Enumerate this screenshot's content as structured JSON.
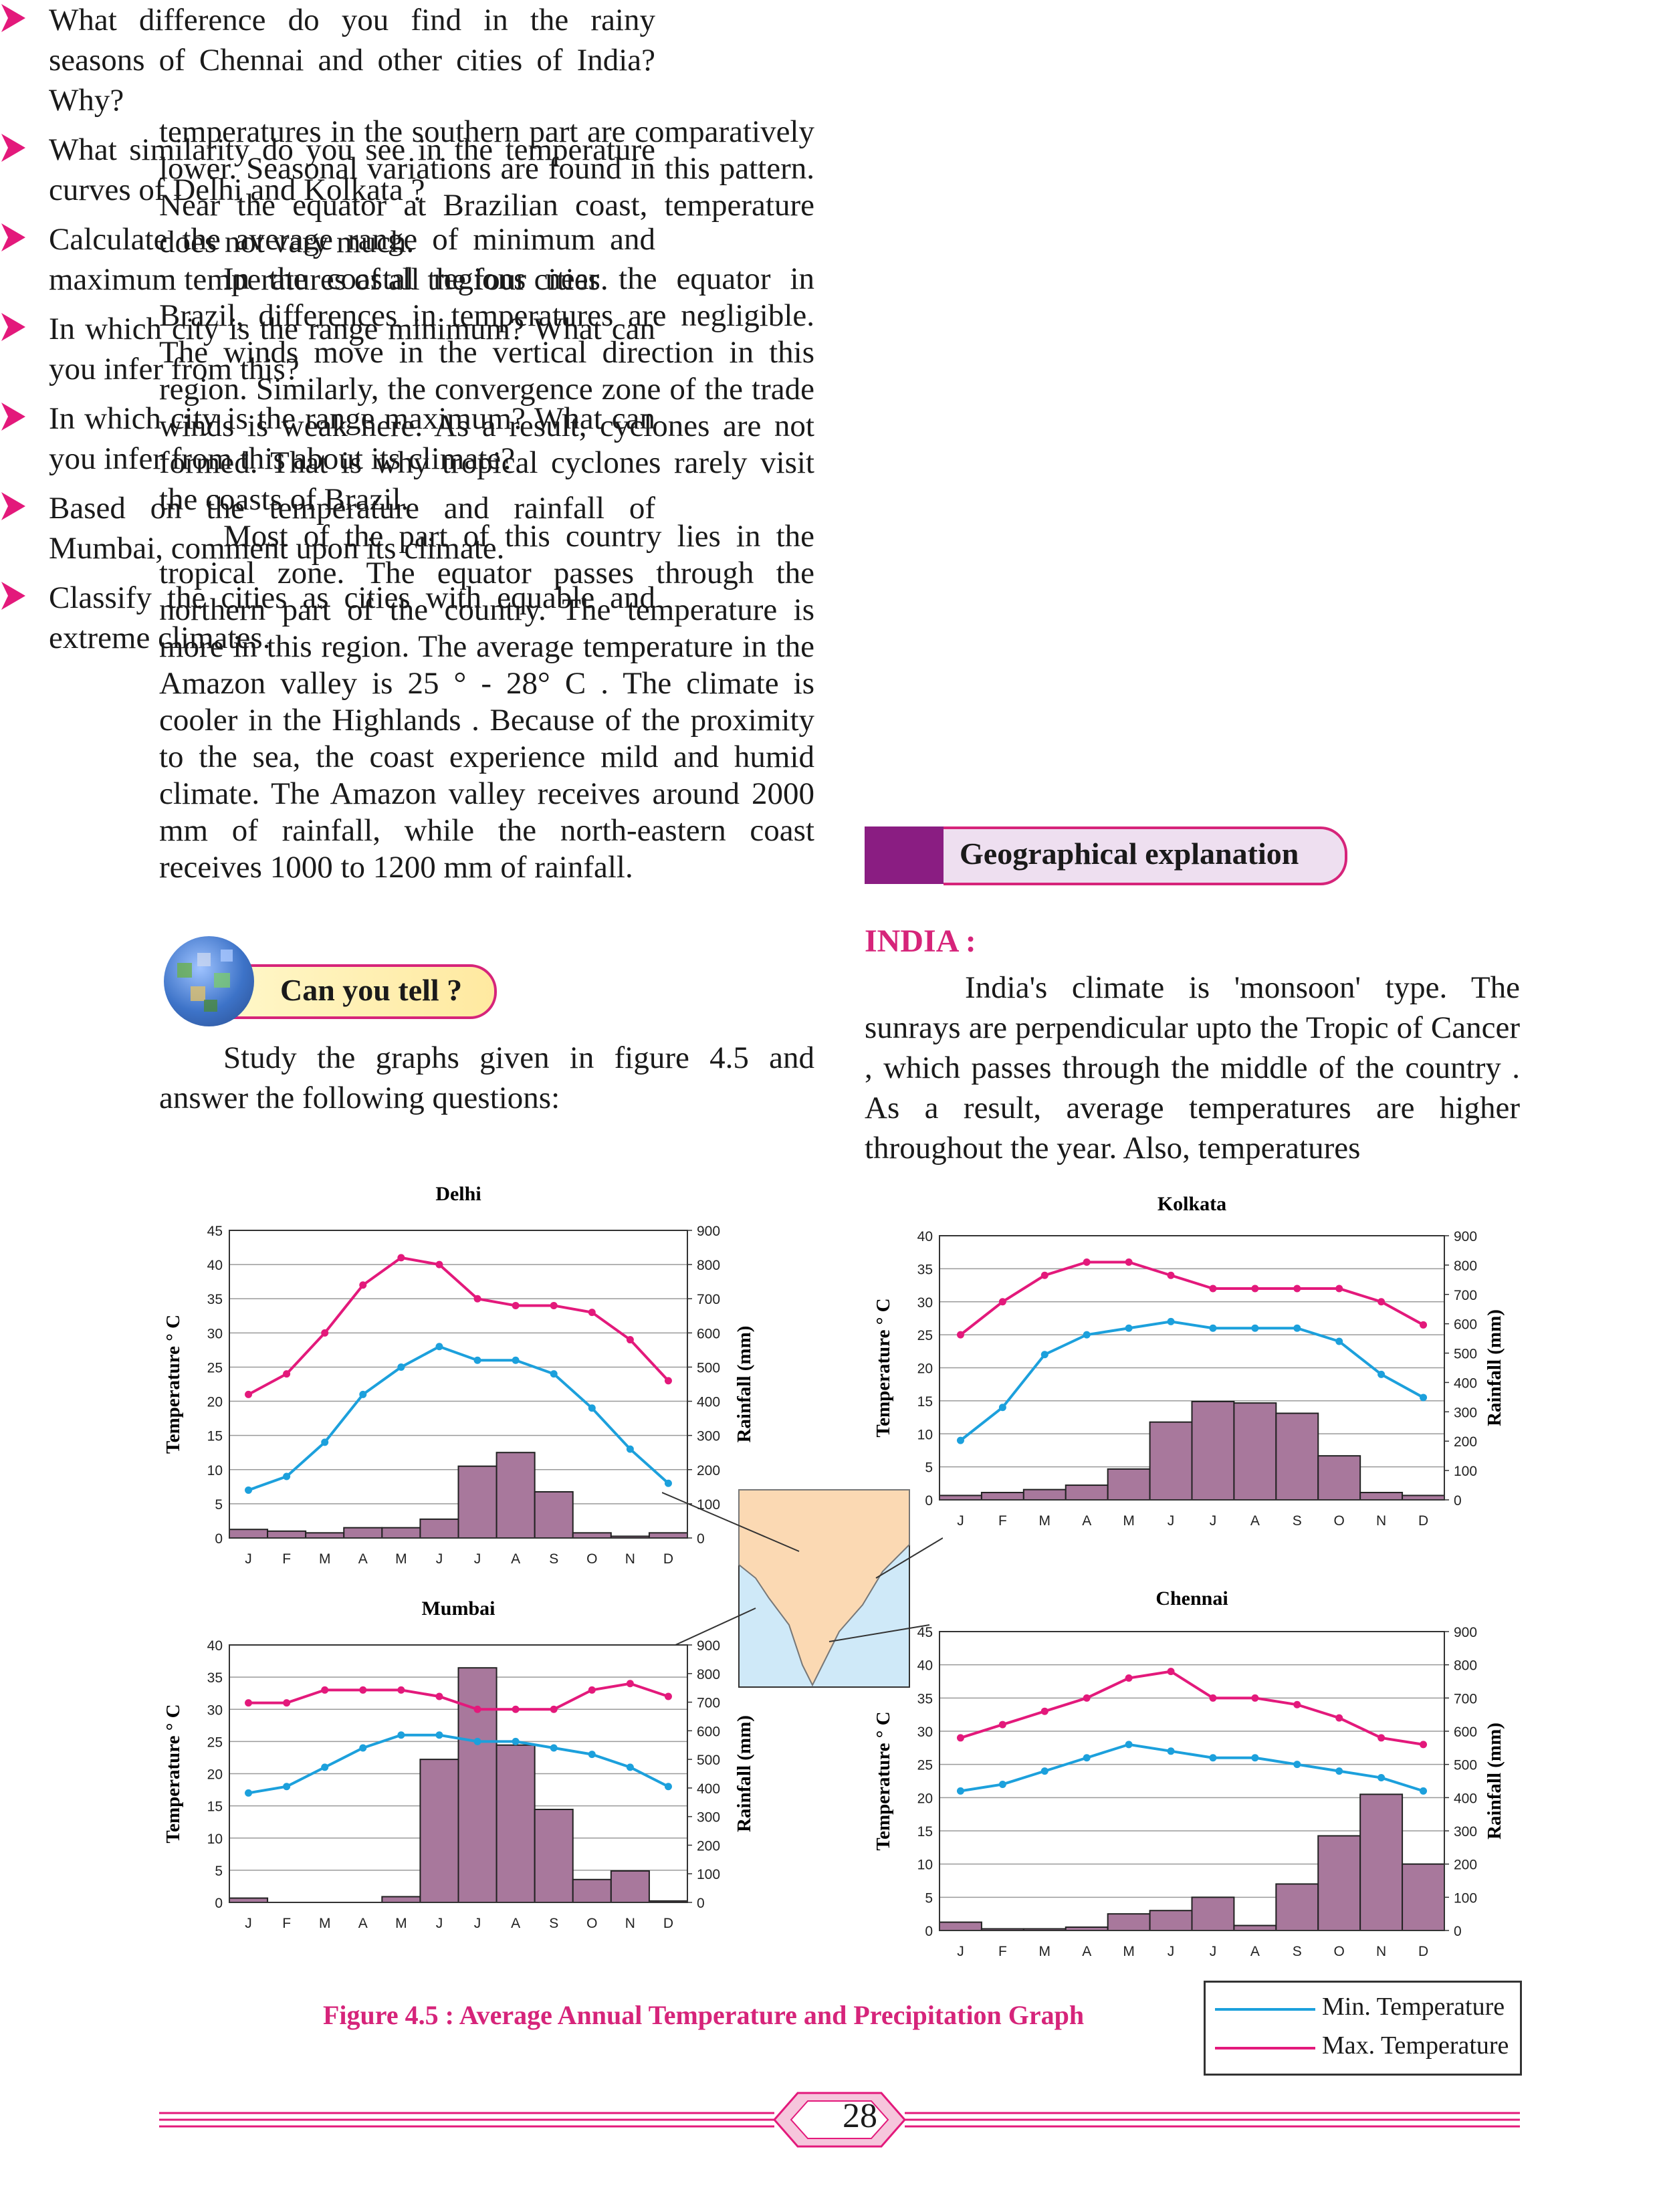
{
  "left_paragraphs": [
    "temperatures in the southern part are comparatively lower. Seasonal variations are found in this pattern. Near the equator at Brazilian coast, temperature does not vary much.",
    "In the coastal regions near the equator in Brazil, differences in temperatures are negligible. The winds move in the vertical direction in this region. Similarly, the convergence zone of the trade winds is weak here. As a result, cyclones are not formed. That is why tropical cyclones rarely visit the coasts of Brazil.",
    "Most of the part of this country lies in the tropical zone. The equator passes through the northern part of the country. The temperature is more in this region. The average temperature in the Amazon valley is 25 ° - 28° C . The climate is cooler in the Highlands . Because of the proximity to the sea, the coast experience mild and humid climate. The Amazon valley receives around 2000 mm of rainfall, while the north-eastern coast receives 1000 to 1200 mm of rainfall."
  ],
  "can_you_tell": "Can you tell ?",
  "study_text": "Study the graphs given in figure 4.5 and answer the following questions:",
  "questions": [
    "What difference do you find in the rainy seasons of Chennai and other cities of India? Why?",
    "What similarity do you see in the temperature curves of Delhi and Kolkata ?",
    "Calculate the average range of minimum and maximum temperatures of all the four cities.",
    "In which city is the range minimum? What can you infer from this?",
    "In which city is the range maximum? What can you infer from this about its climate?",
    "Based on the temperature and rainfall of Mumbai, comment upon its climate.",
    "Classify the cities as cities with equable and extreme climates."
  ],
  "geo_banner": "Geographical explanation",
  "india_heading": "INDIA :",
  "india_text": "India's climate is 'monsoon' type. The sunrays are perpendicular upto the Tropic of Cancer , which passes through the middle of the country . As a result, average temperatures are higher throughout the year. Also, temperatures",
  "caption": "Figure 4.5 : Average Annual Temperature and Precipitation Graph",
  "legend": {
    "min": "Min. Temperature",
    "max": "Max. Temperature"
  },
  "colors": {
    "min_line": "#1ca0dc",
    "max_line": "#e3197b",
    "bar": "#a8789c",
    "accent": "#d6247a",
    "banner_box": "#8a1d82"
  },
  "page_number": "28",
  "chart_data": [
    {
      "type": "bar+line",
      "title": "Delhi",
      "ylabel_left": "Temperature ° C",
      "ylabel_right": "Rainfall (mm)",
      "categories": [
        "J",
        "F",
        "M",
        "A",
        "M",
        "J",
        "J",
        "A",
        "S",
        "O",
        "N",
        "D"
      ],
      "temp_ylim": [
        0,
        45
      ],
      "temp_ticks": [
        0,
        5,
        10,
        15,
        20,
        25,
        30,
        35,
        40,
        45
      ],
      "rain_ylim": [
        0,
        900
      ],
      "rain_ticks": [
        0,
        100,
        200,
        300,
        400,
        500,
        600,
        700,
        800,
        900
      ],
      "series": [
        {
          "name": "Min. Temperature",
          "values": [
            7,
            9,
            14,
            21,
            25,
            28,
            26,
            26,
            24,
            19,
            13,
            8
          ]
        },
        {
          "name": "Max. Temperature",
          "values": [
            21,
            24,
            30,
            37,
            41,
            40,
            35,
            34,
            34,
            33,
            29,
            23
          ]
        },
        {
          "name": "Rainfall",
          "values": [
            25,
            20,
            15,
            30,
            30,
            55,
            210,
            250,
            135,
            15,
            5,
            15
          ]
        }
      ],
      "grid": true
    },
    {
      "type": "bar+line",
      "title": "Kolkata",
      "ylabel_left": "Temperature ° C",
      "ylabel_right": "Rainfall (mm)",
      "categories": [
        "J",
        "F",
        "M",
        "A",
        "M",
        "J",
        "J",
        "A",
        "S",
        "O",
        "N",
        "D"
      ],
      "temp_ylim": [
        0,
        40
      ],
      "temp_ticks": [
        0,
        5,
        10,
        15,
        20,
        25,
        30,
        35,
        40
      ],
      "rain_ylim": [
        0,
        900
      ],
      "rain_ticks": [
        0,
        100,
        200,
        300,
        400,
        500,
        600,
        700,
        800,
        900
      ],
      "series": [
        {
          "name": "Min. Temperature",
          "values": [
            9,
            14,
            22,
            25,
            26,
            27,
            26,
            26,
            26,
            24,
            19,
            15.5
          ]
        },
        {
          "name": "Max. Temperature",
          "values": [
            25,
            30,
            34,
            36,
            36,
            34,
            32,
            32,
            32,
            32,
            30,
            26.5
          ]
        },
        {
          "name": "Rainfall",
          "values": [
            15,
            25,
            35,
            50,
            105,
            265,
            335,
            330,
            295,
            150,
            25,
            15
          ]
        }
      ],
      "grid": true
    },
    {
      "type": "bar+line",
      "title": "Mumbai",
      "ylabel_left": "Temperature ° C",
      "ylabel_right": "Rainfall (mm)",
      "categories": [
        "J",
        "F",
        "M",
        "A",
        "M",
        "J",
        "J",
        "A",
        "S",
        "O",
        "N",
        "D"
      ],
      "temp_ylim": [
        0,
        40
      ],
      "temp_ticks": [
        0,
        5,
        10,
        15,
        20,
        25,
        30,
        35,
        40
      ],
      "rain_ylim": [
        0,
        900
      ],
      "rain_ticks": [
        0,
        100,
        200,
        300,
        400,
        500,
        600,
        700,
        800,
        900
      ],
      "series": [
        {
          "name": "Min. Temperature",
          "values": [
            17,
            18,
            21,
            24,
            26,
            26,
            25,
            25,
            24,
            23,
            21,
            18
          ]
        },
        {
          "name": "Max. Temperature",
          "values": [
            31,
            31,
            33,
            33,
            33,
            32,
            30,
            30,
            30,
            33,
            34,
            32
          ]
        },
        {
          "name": "Rainfall",
          "values": [
            15,
            0,
            0,
            0,
            20,
            500,
            820,
            550,
            325,
            80,
            110,
            5
          ]
        }
      ],
      "grid": true
    },
    {
      "type": "bar+line",
      "title": "Chennai",
      "ylabel_left": "Temperature ° C",
      "ylabel_right": "Rainfall (mm)",
      "categories": [
        "J",
        "F",
        "M",
        "A",
        "M",
        "J",
        "J",
        "A",
        "S",
        "O",
        "N",
        "D"
      ],
      "temp_ylim": [
        0,
        45
      ],
      "temp_ticks": [
        0,
        5,
        10,
        15,
        20,
        25,
        30,
        35,
        40,
        45
      ],
      "rain_ylim": [
        0,
        900
      ],
      "rain_ticks": [
        0,
        100,
        200,
        300,
        400,
        500,
        600,
        700,
        800,
        900
      ],
      "series": [
        {
          "name": "Min. Temperature",
          "values": [
            21,
            22,
            24,
            26,
            28,
            27,
            26,
            26,
            25,
            24,
            23,
            21
          ]
        },
        {
          "name": "Max. Temperature",
          "values": [
            29,
            31,
            33,
            35,
            38,
            39,
            35,
            35,
            34,
            32,
            29,
            28
          ]
        },
        {
          "name": "Rainfall",
          "values": [
            25,
            5,
            5,
            10,
            50,
            60,
            100,
            15,
            140,
            285,
            410,
            200
          ]
        }
      ],
      "grid": true
    }
  ]
}
